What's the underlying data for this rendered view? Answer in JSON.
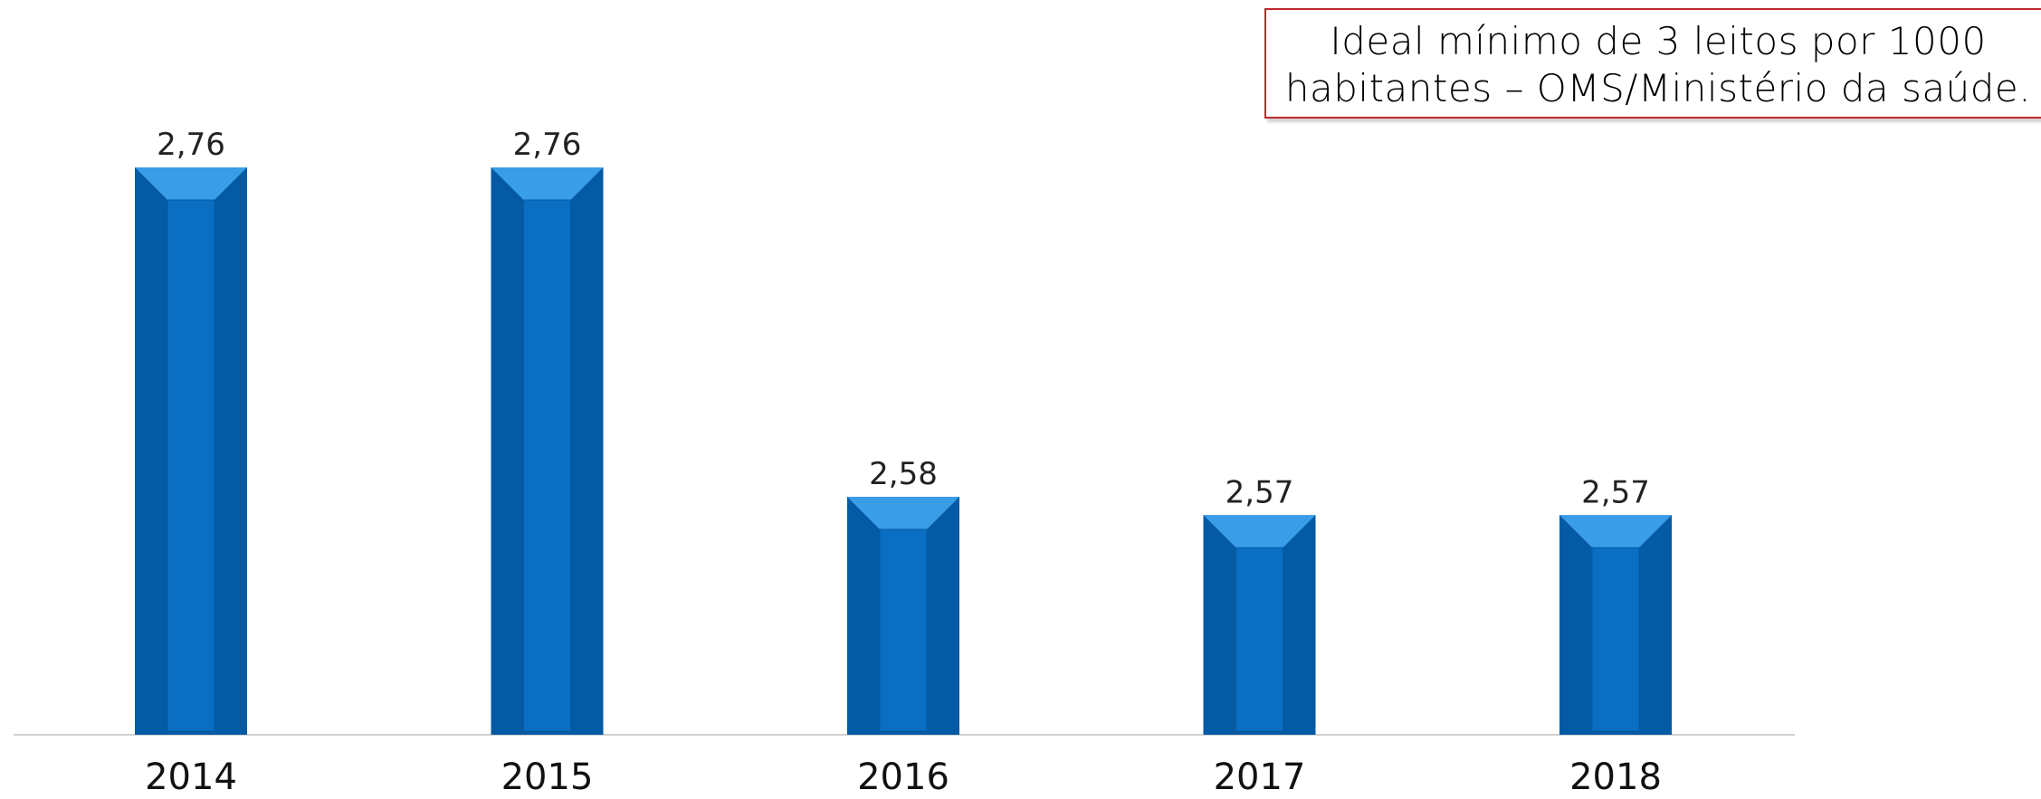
{
  "annotation": {
    "text": "Ideal mínimo de 3 leitos por 1000 habitantes – OMS/Ministério da saúde."
  },
  "colors": {
    "bar_main": "#0a6fc2",
    "bar_dark": "#045aa3",
    "bar_light": "#3a9de8",
    "bar_top": "#1f86d8",
    "axis": "#d0d0d0",
    "callout_border": "#c0282f"
  },
  "chart_data": {
    "type": "bar",
    "categories": [
      "2014",
      "2015",
      "2016",
      "2017",
      "2018"
    ],
    "values": [
      2.76,
      2.76,
      2.58,
      2.57,
      2.57
    ],
    "value_labels": [
      "2,76",
      "2,76",
      "2,58",
      "2,57",
      "2,57"
    ],
    "title": "",
    "xlabel": "",
    "ylabel": "",
    "ylim": [
      2.45,
      2.79
    ],
    "grid": false,
    "legend": "none"
  }
}
